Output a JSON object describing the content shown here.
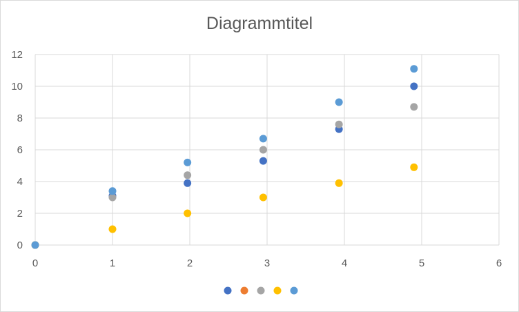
{
  "chart_data": {
    "type": "scatter",
    "title": "Diagrammtitel",
    "xlabel": "",
    "ylabel": "",
    "xlim": [
      0,
      6
    ],
    "ylim": [
      0,
      12
    ],
    "x_ticks": [
      0,
      1,
      2,
      3,
      4,
      5,
      6
    ],
    "y_ticks": [
      0,
      2,
      4,
      6,
      8,
      10,
      12
    ],
    "grid": true,
    "legend_placement": "bottom",
    "legend_entries": [
      "",
      "",
      "",
      "",
      ""
    ],
    "series": [
      {
        "color": "#4472C4",
        "points": [
          [
            0,
            0
          ],
          [
            1,
            3.1
          ],
          [
            1.97,
            3.9
          ],
          [
            2.95,
            5.3
          ],
          [
            3.93,
            7.3
          ],
          [
            4.9,
            10
          ]
        ]
      },
      {
        "color": "#ED7D31",
        "points": []
      },
      {
        "color": "#A5A5A5",
        "points": [
          [
            0,
            0
          ],
          [
            1,
            3
          ],
          [
            1.97,
            4.4
          ],
          [
            2.95,
            6
          ],
          [
            3.93,
            7.6
          ],
          [
            4.9,
            8.7
          ]
        ]
      },
      {
        "color": "#FFC000",
        "points": [
          [
            0,
            0
          ],
          [
            1,
            1
          ],
          [
            1.97,
            2
          ],
          [
            2.95,
            3
          ],
          [
            3.93,
            3.9
          ],
          [
            4.9,
            4.9
          ]
        ]
      },
      {
        "color": "#5B9BD5",
        "points": [
          [
            0,
            0
          ],
          [
            1,
            3.4
          ],
          [
            1.97,
            5.2
          ],
          [
            2.95,
            6.7
          ],
          [
            3.93,
            9
          ],
          [
            4.9,
            11.1
          ]
        ]
      }
    ]
  }
}
